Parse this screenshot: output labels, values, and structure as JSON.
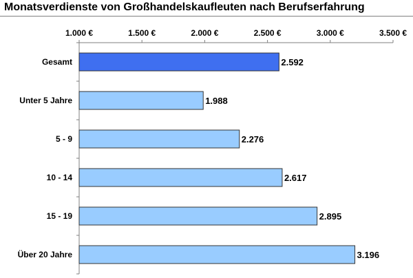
{
  "chart_data": {
    "type": "bar",
    "orientation": "horizontal",
    "title": "Monatsverdienste von Großhandelskaufleuten nach Berufserfahrung",
    "categories": [
      "Gesamt",
      "Unter 5 Jahre",
      "5 - 9",
      "10 - 14",
      "15 - 19",
      "Über 20 Jahre"
    ],
    "values": [
      2592,
      1988,
      2276,
      2617,
      2895,
      3196
    ],
    "value_labels": [
      "2.592",
      "1.988",
      "2.276",
      "2.617",
      "2.895",
      "3.196"
    ],
    "x_ticks": [
      "1.000 €",
      "1.500 €",
      "2.000 €",
      "2.500 €",
      "3.000 €",
      "3.500 €"
    ],
    "x_tick_values": [
      1000,
      1500,
      2000,
      2500,
      3000,
      3500
    ],
    "xlim": [
      1000,
      3500
    ],
    "tick_position": "top",
    "grid": false,
    "colors": {
      "highlight": "#3f6ff0",
      "bar": "#99ccff",
      "bar_border": "#333333",
      "axis": "#7f7f7f"
    },
    "highlight_index": 0
  }
}
